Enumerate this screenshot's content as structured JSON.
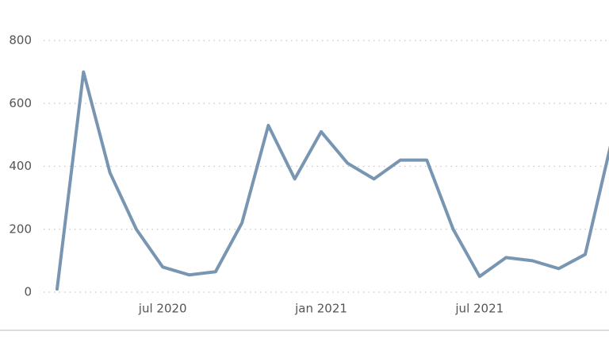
{
  "chart_data": {
    "type": "line",
    "x": [
      "2020-03",
      "2020-04",
      "2020-05",
      "2020-06",
      "2020-07",
      "2020-08",
      "2020-09",
      "2020-10",
      "2020-11",
      "2020-12",
      "2021-01",
      "2021-02",
      "2021-03",
      "2021-04",
      "2021-05",
      "2021-06",
      "2021-07",
      "2021-08",
      "2021-09",
      "2021-10",
      "2021-11",
      "2021-12"
    ],
    "series": [
      {
        "color": "#7895b2",
        "values": [
          10,
          700,
          380,
          200,
          80,
          55,
          65,
          220,
          530,
          360,
          510,
          410,
          360,
          420,
          420,
          200,
          50,
          110,
          100,
          75,
          120,
          480
        ]
      }
    ],
    "xticks": [
      {
        "value": "2020-07",
        "label": "jul 2020"
      },
      {
        "value": "2021-01",
        "label": "jan 2021"
      },
      {
        "value": "2021-07",
        "label": "jul 2021"
      }
    ],
    "ylim": [
      0,
      800
    ],
    "yticks": [
      0,
      200,
      400,
      600,
      800
    ],
    "grid": true
  }
}
